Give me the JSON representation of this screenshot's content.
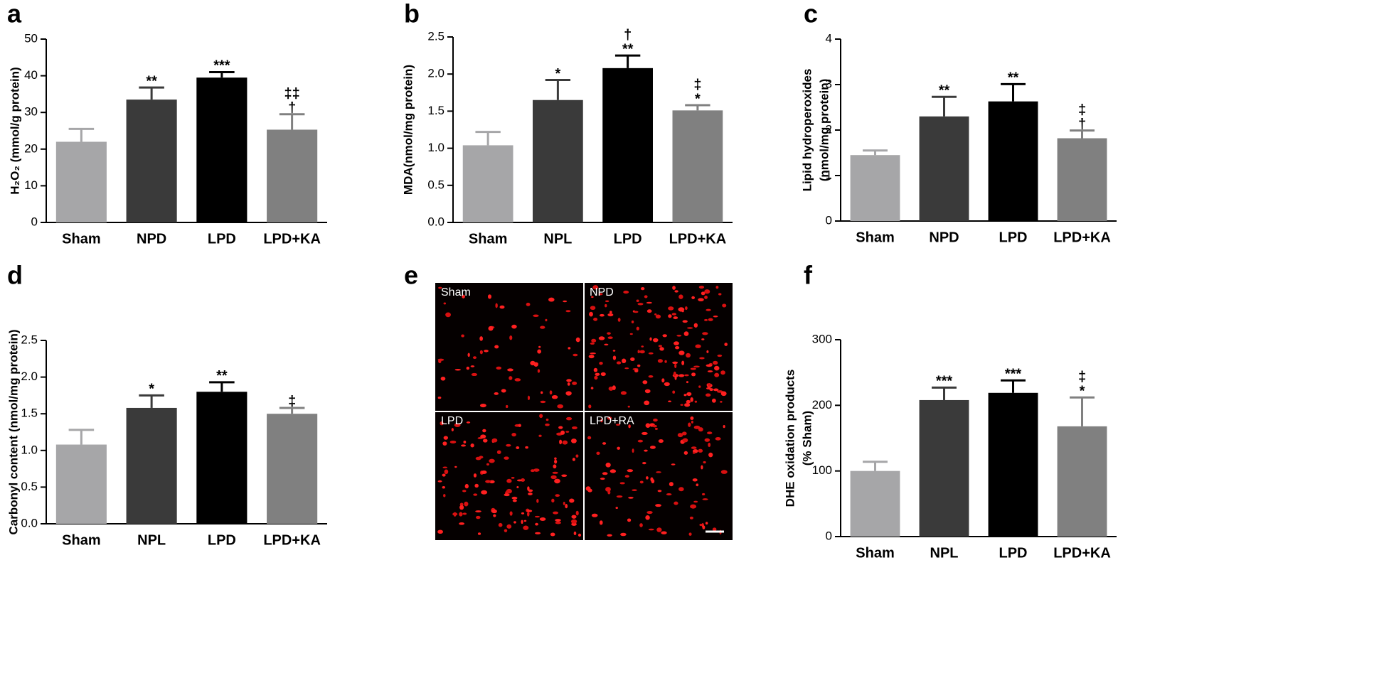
{
  "chart_data": [
    {
      "type": "bar",
      "panel_label": "a",
      "ylabel": "H₂O₂ (mmol/g protein)",
      "categories": [
        "Sham",
        "NPD",
        "LPD",
        "LPD+KA"
      ],
      "values": [
        22,
        33.5,
        39.5,
        25.3
      ],
      "errors": [
        3.5,
        3.3,
        1.5,
        4.2
      ],
      "annotations": [
        [],
        [
          "**"
        ],
        [
          "***"
        ],
        [
          "‡‡",
          "†"
        ]
      ],
      "colors": [
        "#a6a6a8",
        "#3a3a3a",
        "#000000",
        "#808080"
      ],
      "ylim": [
        0,
        50
      ],
      "yticks": [
        0,
        10,
        20,
        30,
        40,
        50
      ]
    },
    {
      "type": "bar",
      "panel_label": "b",
      "ylabel": "MDA(nmol/mg protein)",
      "categories": [
        "Sham",
        "NPL",
        "LPD",
        "LPD+KA"
      ],
      "values": [
        1.04,
        1.65,
        2.08,
        1.51
      ],
      "errors": [
        0.18,
        0.27,
        0.17,
        0.07
      ],
      "annotations": [
        [],
        [
          "*"
        ],
        [
          "†",
          "**"
        ],
        [
          "‡",
          "*"
        ]
      ],
      "colors": [
        "#a6a6a8",
        "#3a3a3a",
        "#000000",
        "#808080"
      ],
      "ylim": [
        0,
        2.5
      ],
      "yticks": [
        {
          "value": 0,
          "label": "0.0"
        },
        0.5,
        {
          "value": 1,
          "label": "1.0"
        },
        1.5,
        {
          "value": 2,
          "label": "2.0"
        },
        2.5
      ]
    },
    {
      "type": "bar",
      "panel_label": "c",
      "ylabel": [
        "Lipid hydroperoxides",
        "(nmol/mg protein)"
      ],
      "categories": [
        "Sham",
        "NPD",
        "LPD",
        "LPD+KA"
      ],
      "values": [
        1.45,
        2.3,
        2.63,
        1.82
      ],
      "errors": [
        0.1,
        0.43,
        0.38,
        0.17
      ],
      "annotations": [
        [],
        [
          "**"
        ],
        [
          "**"
        ],
        [
          "‡",
          "†"
        ]
      ],
      "colors": [
        "#a6a6a8",
        "#3a3a3a",
        "#000000",
        "#808080"
      ],
      "ylim": [
        0,
        4
      ],
      "yticks": [
        0,
        1,
        2,
        3,
        4
      ]
    },
    {
      "type": "bar",
      "panel_label": "d",
      "ylabel": "Carbonyl content (nmol/mg protein)",
      "categories": [
        "Sham",
        "NPL",
        "LPD",
        "LPD+KA"
      ],
      "values": [
        1.08,
        1.58,
        1.8,
        1.5
      ],
      "errors": [
        0.2,
        0.17,
        0.13,
        0.08
      ],
      "annotations": [
        [],
        [
          "*"
        ],
        [
          "**"
        ],
        [
          "‡"
        ]
      ],
      "colors": [
        "#a6a6a8",
        "#3a3a3a",
        "#000000",
        "#808080"
      ],
      "ylim": [
        0,
        2.5
      ],
      "yticks": [
        {
          "value": 0,
          "label": "0.0"
        },
        0.5,
        {
          "value": 1,
          "label": "1.0"
        },
        1.5,
        {
          "value": 2,
          "label": "2.0"
        },
        2.5
      ]
    },
    {
      "type": "bar",
      "panel_label": "f",
      "ylabel": [
        "DHE oxidation products",
        "(% Sham)"
      ],
      "categories": [
        "Sham",
        "NPL",
        "LPD",
        "LPD+KA"
      ],
      "values": [
        100,
        208,
        219,
        168
      ],
      "errors": [
        14,
        19,
        19,
        44
      ],
      "annotations": [
        [],
        [
          "***"
        ],
        [
          "***"
        ],
        [
          "‡",
          "*"
        ]
      ],
      "colors": [
        "#a6a6a8",
        "#3a3a3a",
        "#000000",
        "#808080"
      ],
      "ylim": [
        0,
        300
      ],
      "yticks": [
        0,
        100,
        200,
        300
      ]
    }
  ],
  "image_panel": {
    "panel_label": "e",
    "quadrants": [
      "Sham",
      "NPD",
      "LPD",
      "LPD+RA"
    ]
  }
}
